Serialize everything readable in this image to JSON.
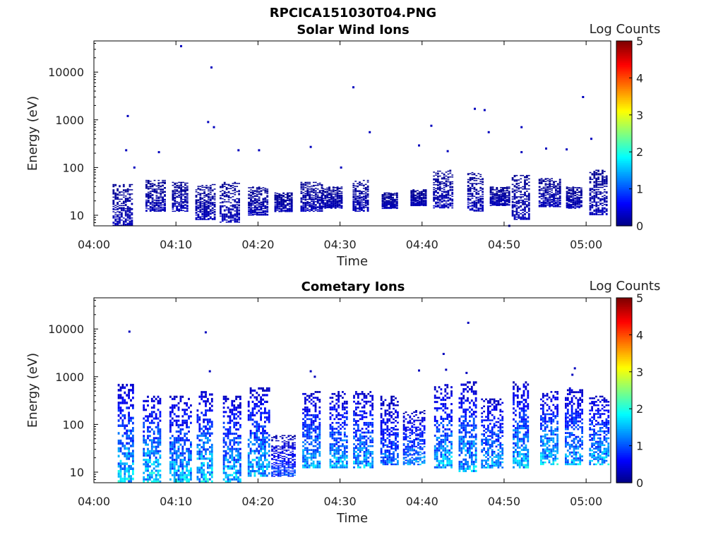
{
  "figure_title": "RPCICA151030T04.PNG",
  "colorscale": {
    "label": "Log Counts",
    "range": [
      0,
      5
    ],
    "ticks": [
      "0",
      "1",
      "2",
      "3",
      "4",
      "5"
    ],
    "colormap": "jet"
  },
  "chart_data": [
    {
      "type": "heatmap",
      "title": "Solar Wind Ions",
      "xlabel": "Time",
      "ylabel": "Energy (eV)",
      "x_ticks": [
        "04:00",
        "04:10",
        "04:20",
        "04:30",
        "04:40",
        "04:50",
        "05:00"
      ],
      "y_ticks": [
        "10",
        "100",
        "1000",
        "10000"
      ],
      "y_scale": "log",
      "ylim": [
        6,
        45000
      ],
      "xlim_minutes": [
        0,
        63
      ],
      "colorbar": "Log Counts",
      "clim": [
        0,
        5
      ],
      "bursts": [
        {
          "t": 3.5,
          "e_lo": 6,
          "e_hi": 45,
          "v": 0.3
        },
        {
          "t": 7.5,
          "e_lo": 12,
          "e_hi": 55,
          "v": 0.3
        },
        {
          "t": 10.5,
          "e_lo": 12,
          "e_hi": 50,
          "v": 0.3
        },
        {
          "t": 13.5,
          "e_lo": 8,
          "e_hi": 45,
          "v": 0.3
        },
        {
          "t": 16.5,
          "e_lo": 7,
          "e_hi": 50,
          "v": 0.3
        },
        {
          "t": 20.0,
          "e_lo": 10,
          "e_hi": 40,
          "v": 0.3
        },
        {
          "t": 23.0,
          "e_lo": 12,
          "e_hi": 30,
          "v": 0.3
        },
        {
          "t": 26.5,
          "e_lo": 12,
          "e_hi": 50,
          "v": 0.3
        },
        {
          "t": 29.0,
          "e_lo": 14,
          "e_hi": 40,
          "v": 0.3
        },
        {
          "t": 32.5,
          "e_lo": 12,
          "e_hi": 55,
          "v": 0.3
        },
        {
          "t": 36.0,
          "e_lo": 14,
          "e_hi": 30,
          "v": 0.3
        },
        {
          "t": 39.5,
          "e_lo": 16,
          "e_hi": 35,
          "v": 0.3
        },
        {
          "t": 42.5,
          "e_lo": 14,
          "e_hi": 90,
          "v": 0.3
        },
        {
          "t": 46.5,
          "e_lo": 12,
          "e_hi": 80,
          "v": 0.3
        },
        {
          "t": 49.5,
          "e_lo": 16,
          "e_hi": 40,
          "v": 0.3
        },
        {
          "t": 52.0,
          "e_lo": 8,
          "e_hi": 70,
          "v": 0.3
        },
        {
          "t": 55.5,
          "e_lo": 15,
          "e_hi": 60,
          "v": 0.3
        },
        {
          "t": 58.5,
          "e_lo": 14,
          "e_hi": 40,
          "v": 0.3
        },
        {
          "t": 61.5,
          "e_lo": 10,
          "e_hi": 90,
          "v": 0.3
        }
      ],
      "isolated_points": [
        {
          "t": 10.5,
          "e": 35000
        },
        {
          "t": 14.2,
          "e": 12500
        },
        {
          "t": 4.0,
          "e": 1200
        },
        {
          "t": 31.5,
          "e": 4800
        },
        {
          "t": 13.8,
          "e": 900
        },
        {
          "t": 14.5,
          "e": 700
        },
        {
          "t": 33.5,
          "e": 550
        },
        {
          "t": 41.0,
          "e": 750
        },
        {
          "t": 46.3,
          "e": 1700
        },
        {
          "t": 47.5,
          "e": 1600
        },
        {
          "t": 52.0,
          "e": 700
        },
        {
          "t": 59.5,
          "e": 3000
        },
        {
          "t": 48.0,
          "e": 550
        },
        {
          "t": 60.5,
          "e": 400
        },
        {
          "t": 3.8,
          "e": 230
        },
        {
          "t": 7.8,
          "e": 210
        },
        {
          "t": 17.5,
          "e": 230
        },
        {
          "t": 20.0,
          "e": 230
        },
        {
          "t": 26.3,
          "e": 270
        },
        {
          "t": 39.5,
          "e": 290
        },
        {
          "t": 43.0,
          "e": 220
        },
        {
          "t": 52.0,
          "e": 210
        },
        {
          "t": 55.0,
          "e": 250
        },
        {
          "t": 57.5,
          "e": 240
        },
        {
          "t": 4.8,
          "e": 100
        },
        {
          "t": 30.0,
          "e": 100
        },
        {
          "t": 50.5,
          "e": 6
        }
      ]
    },
    {
      "type": "heatmap",
      "title": "Cometary Ions",
      "xlabel": "Time",
      "ylabel": "Energy (eV)",
      "x_ticks": [
        "04:00",
        "04:10",
        "04:20",
        "04:30",
        "04:40",
        "04:50",
        "05:00"
      ],
      "y_ticks": [
        "10",
        "100",
        "1000",
        "10000"
      ],
      "y_scale": "log",
      "ylim": [
        6,
        45000
      ],
      "xlim_minutes": [
        0,
        63
      ],
      "colorbar": "Log Counts",
      "clim": [
        0,
        5
      ],
      "bursts": [
        {
          "t": 3.8,
          "e_lo": 6,
          "e_hi": 800,
          "v": 1.7
        },
        {
          "t": 7.0,
          "e_lo": 6,
          "e_hi": 400,
          "v": 1.8
        },
        {
          "t": 10.5,
          "e_lo": 6,
          "e_hi": 400,
          "v": 1.6
        },
        {
          "t": 13.5,
          "e_lo": 6,
          "e_hi": 500,
          "v": 1.7
        },
        {
          "t": 16.8,
          "e_lo": 6,
          "e_hi": 400,
          "v": 1.6
        },
        {
          "t": 20.0,
          "e_lo": 8,
          "e_hi": 600,
          "v": 1.6
        },
        {
          "t": 23.0,
          "e_lo": 8,
          "e_hi": 60,
          "v": 1.0
        },
        {
          "t": 26.5,
          "e_lo": 12,
          "e_hi": 500,
          "v": 1.5
        },
        {
          "t": 29.8,
          "e_lo": 12,
          "e_hi": 500,
          "v": 1.5
        },
        {
          "t": 32.8,
          "e_lo": 12,
          "e_hi": 500,
          "v": 1.5
        },
        {
          "t": 36.0,
          "e_lo": 14,
          "e_hi": 400,
          "v": 1.2
        },
        {
          "t": 39.0,
          "e_lo": 14,
          "e_hi": 200,
          "v": 1.3
        },
        {
          "t": 42.5,
          "e_lo": 12,
          "e_hi": 700,
          "v": 1.6
        },
        {
          "t": 45.5,
          "e_lo": 10,
          "e_hi": 800,
          "v": 1.6
        },
        {
          "t": 48.5,
          "e_lo": 12,
          "e_hi": 350,
          "v": 1.5
        },
        {
          "t": 52.0,
          "e_lo": 12,
          "e_hi": 800,
          "v": 1.6
        },
        {
          "t": 55.5,
          "e_lo": 14,
          "e_hi": 500,
          "v": 1.7
        },
        {
          "t": 58.5,
          "e_lo": 14,
          "e_hi": 600,
          "v": 1.5
        },
        {
          "t": 61.5,
          "e_lo": 14,
          "e_hi": 400,
          "v": 1.6
        }
      ],
      "isolated_points": [
        {
          "t": 4.2,
          "e": 8800
        },
        {
          "t": 13.5,
          "e": 8500
        },
        {
          "t": 45.5,
          "e": 13500
        },
        {
          "t": 14.0,
          "e": 1300
        },
        {
          "t": 26.3,
          "e": 1300
        },
        {
          "t": 39.5,
          "e": 1350
        },
        {
          "t": 42.5,
          "e": 3000
        },
        {
          "t": 42.8,
          "e": 1400
        },
        {
          "t": 45.3,
          "e": 1200
        },
        {
          "t": 58.5,
          "e": 1500
        },
        {
          "t": 58.2,
          "e": 1100
        },
        {
          "t": 26.8,
          "e": 1000
        }
      ]
    }
  ]
}
